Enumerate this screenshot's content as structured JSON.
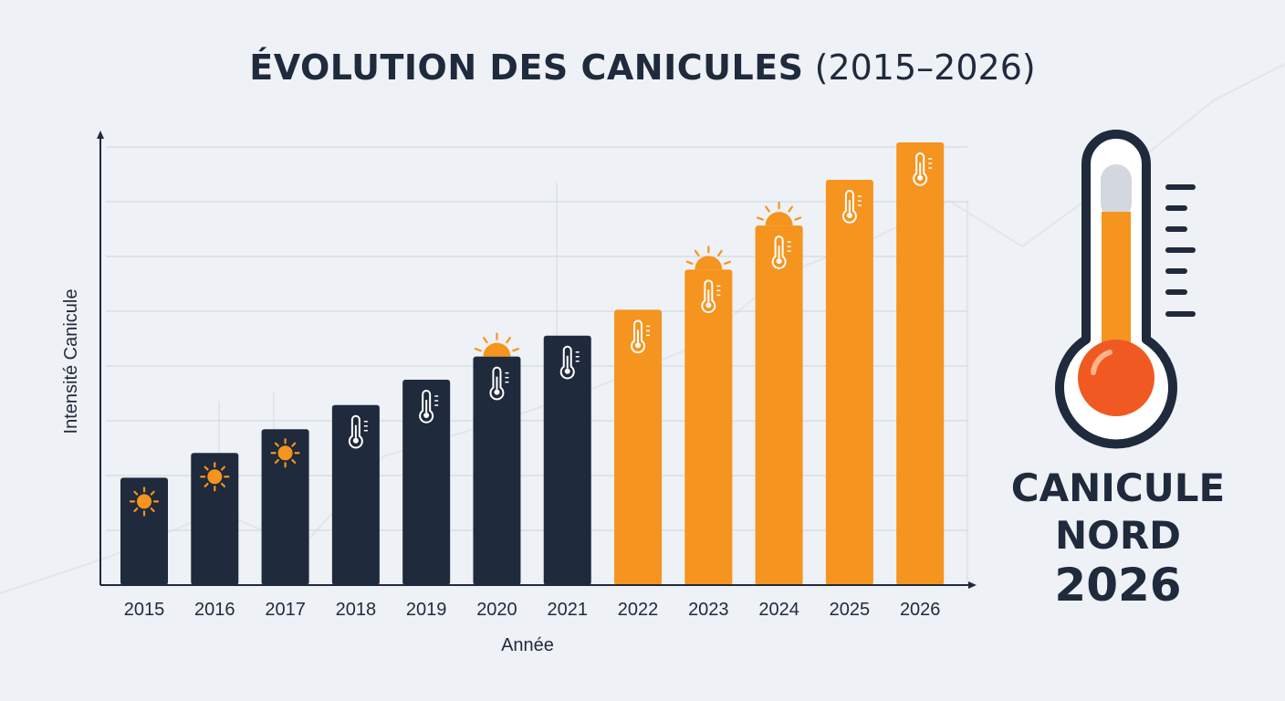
{
  "chart_data": {
    "type": "bar",
    "title_bold": "ÉVOLUTION DES CANICULES",
    "title_light": "(2015–2026)",
    "xlabel": "Année",
    "ylabel": "Intensité Canicule",
    "categories": [
      "2015",
      "2016",
      "2017",
      "2018",
      "2019",
      "2020",
      "2021",
      "2022",
      "2023",
      "2024",
      "2025",
      "2026"
    ],
    "values": [
      1.95,
      2.4,
      2.83,
      3.27,
      3.73,
      4.15,
      4.53,
      5.0,
      5.73,
      6.53,
      7.36,
      8.04
    ],
    "ylim": [
      0,
      8.04
    ],
    "bar_colors": [
      "#1f2a3c",
      "#1f2a3c",
      "#1f2a3c",
      "#1f2a3c",
      "#1f2a3c",
      "#1f2a3c",
      "#1f2a3c",
      "#f5941e",
      "#f5941e",
      "#f5941e",
      "#f5941e",
      "#f5941e"
    ],
    "bar_icons": [
      "sun-icon",
      "sun-icon",
      "sun-icon",
      "thermometer-icon",
      "thermometer-icon",
      "thermometer-icon",
      "thermometer-icon",
      "thermometer-icon",
      "thermometer-icon",
      "thermometer-icon",
      "thermometer-icon",
      "thermometer-icon"
    ],
    "sun_above_bars": [
      "2020",
      "2023",
      "2024"
    ],
    "grid": true,
    "legend": "none"
  },
  "side_panel": {
    "line1": "CANICULE",
    "line2": "NORD",
    "line3": "2026",
    "thermometer_fill_color": "#f5941e",
    "bulb_color": "#f05a22"
  },
  "colors": {
    "navy": "#1f2a3c",
    "orange": "#f5941e",
    "background": "#eef1f5"
  }
}
